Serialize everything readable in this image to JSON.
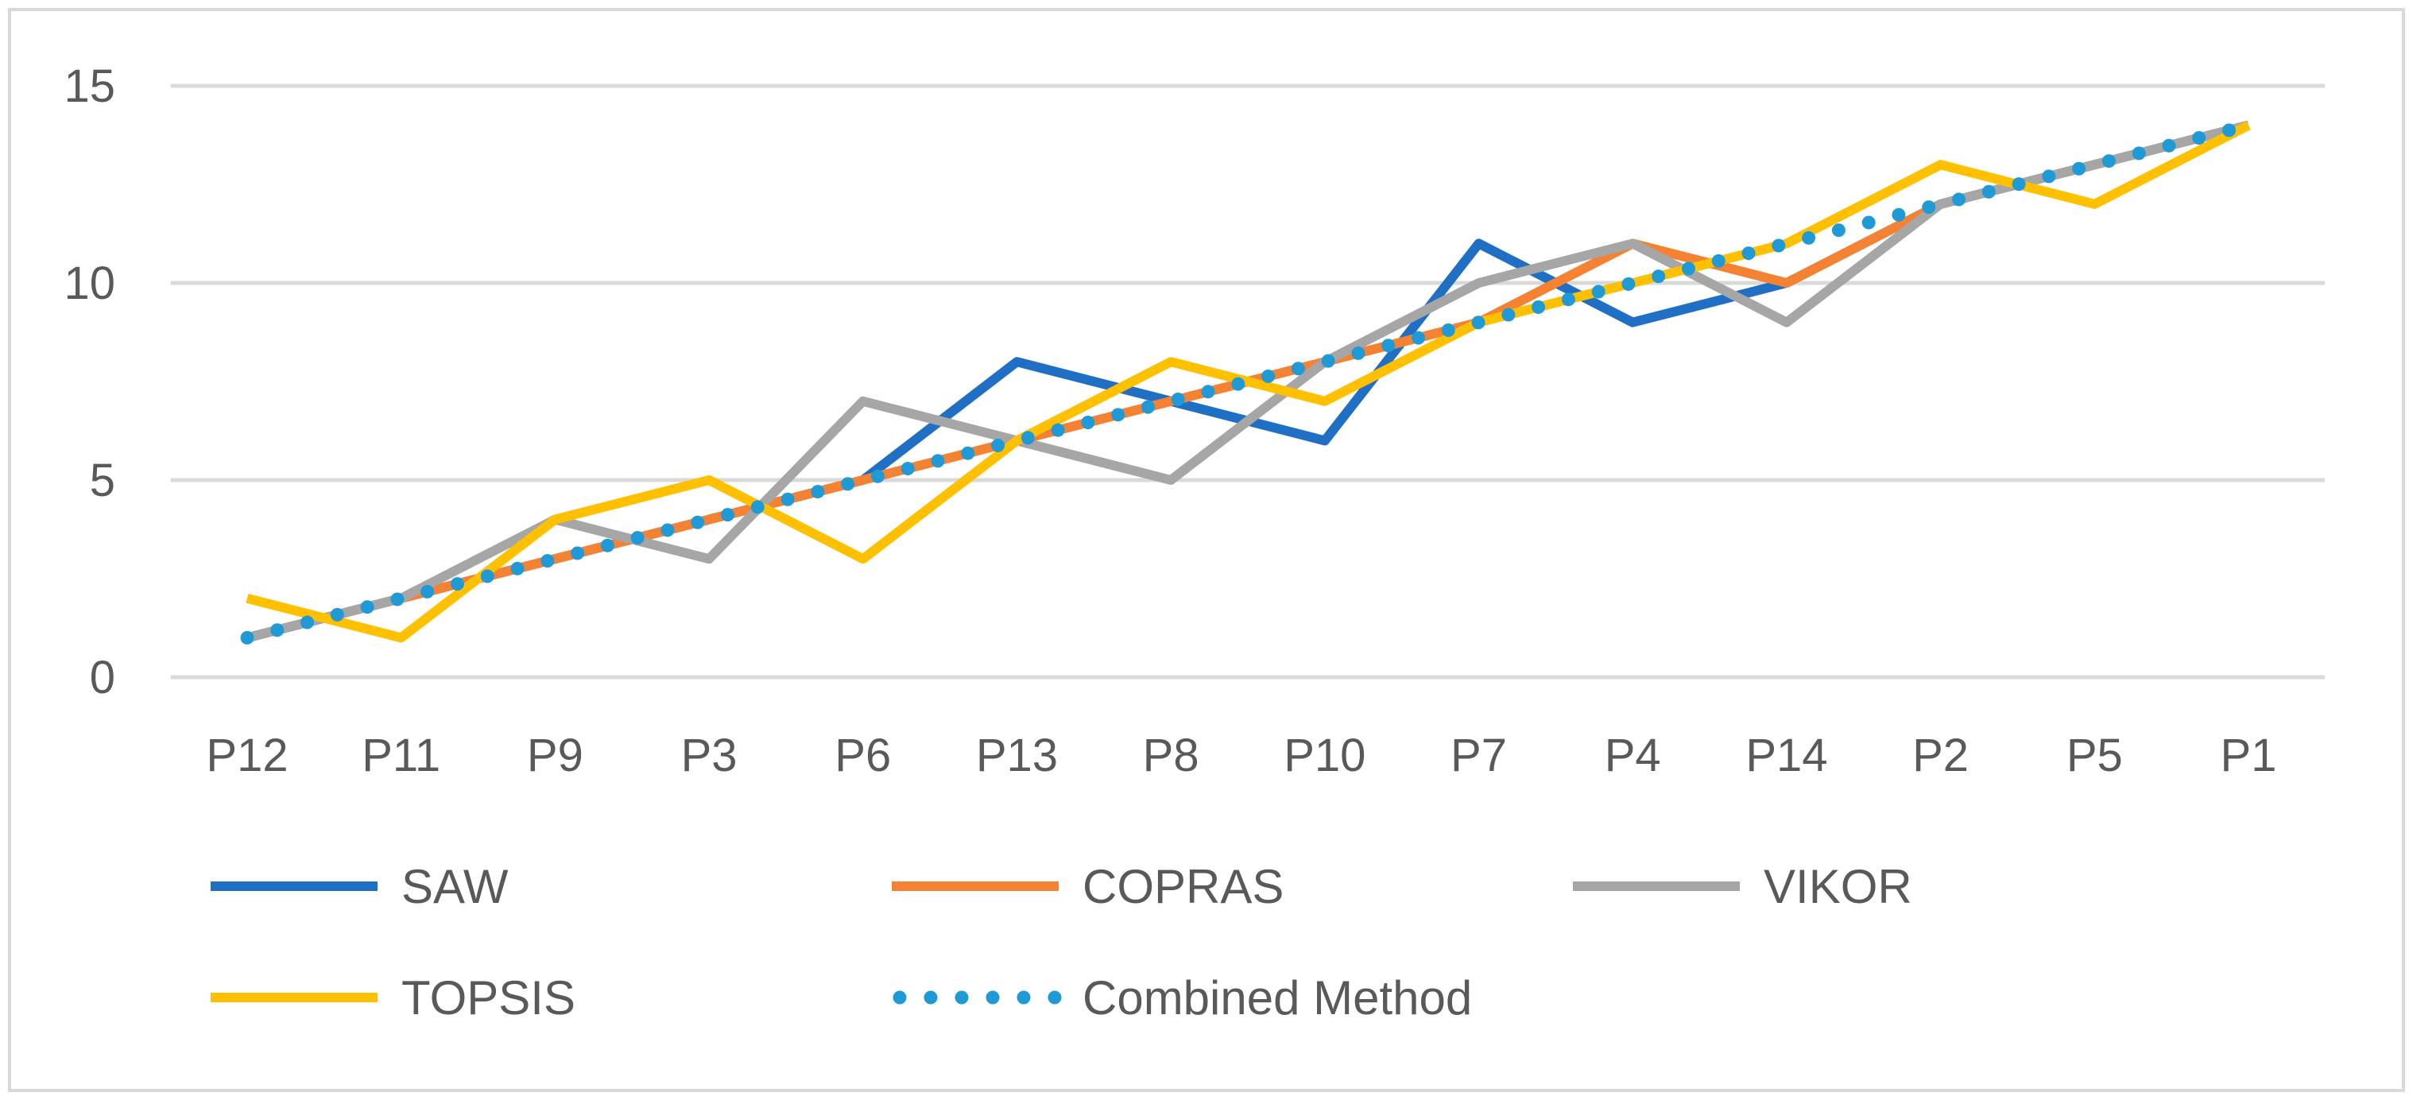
{
  "chart_data": {
    "type": "line",
    "title": "",
    "xlabel": "",
    "ylabel": "",
    "ylim": [
      0,
      15
    ],
    "yticks": [
      0,
      5,
      10,
      15
    ],
    "grid": true,
    "legend_position": "bottom",
    "categories": [
      "P12",
      "P11",
      "P9",
      "P3",
      "P6",
      "P13",
      "P8",
      "P10",
      "P7",
      "P4",
      "P14",
      "P2",
      "P5",
      "P1"
    ],
    "series": [
      {
        "name": "SAW",
        "color": "#1F6FC4",
        "style": "solid",
        "values": [
          1,
          2,
          3,
          4,
          5,
          8,
          7,
          6,
          11,
          9,
          10,
          12,
          13,
          14
        ]
      },
      {
        "name": "COPRAS",
        "color": "#F58233",
        "style": "solid",
        "values": [
          1,
          2,
          3,
          4,
          5,
          6,
          7,
          8,
          9,
          11,
          10,
          12,
          13,
          14
        ]
      },
      {
        "name": "VIKOR",
        "color": "#A6A6A6",
        "style": "solid",
        "values": [
          1,
          2,
          4,
          3,
          7,
          6,
          5,
          8,
          10,
          11,
          9,
          12,
          13,
          14
        ]
      },
      {
        "name": "TOPSIS",
        "color": "#FFC000",
        "style": "solid",
        "values": [
          2,
          1,
          4,
          5,
          3,
          6,
          8,
          7,
          9,
          10,
          11,
          13,
          12,
          14
        ]
      },
      {
        "name": "Combined Method",
        "color": "#1F9AD6",
        "style": "dotted",
        "values": [
          1,
          2,
          3,
          4,
          5,
          6,
          7,
          8,
          9,
          10,
          11,
          12,
          13,
          14
        ]
      }
    ]
  }
}
